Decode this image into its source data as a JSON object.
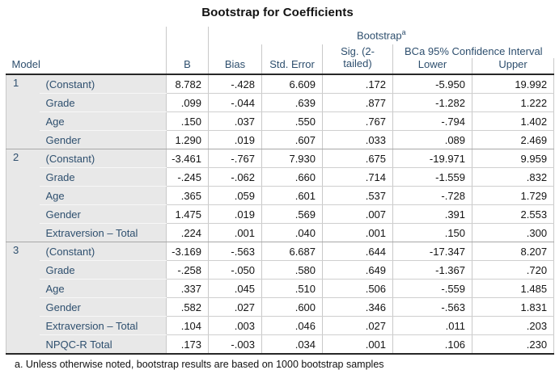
{
  "title": "Bootstrap for Coefficients",
  "header": {
    "model": "Model",
    "b": "B",
    "bootstrap": "Bootstrap",
    "bootstrap_footnote_marker": "a",
    "bias": "Bias",
    "std_error": "Std. Error",
    "sig_line1": "Sig. (2-",
    "sig_line2": "tailed)",
    "bca": "BCa 95% Confidence Interval",
    "lower": "Lower",
    "upper": "Upper"
  },
  "models": [
    {
      "number": "1",
      "rows": [
        {
          "label": "(Constant)",
          "b": "8.782",
          "bias": "-.428",
          "std_error": "6.609",
          "sig": ".172",
          "lower": "-5.950",
          "upper": "19.992"
        },
        {
          "label": "Grade",
          "b": ".099",
          "bias": "-.044",
          "std_error": ".639",
          "sig": ".877",
          "lower": "-1.282",
          "upper": "1.222"
        },
        {
          "label": "Age",
          "b": ".150",
          "bias": ".037",
          "std_error": ".550",
          "sig": ".767",
          "lower": "-.794",
          "upper": "1.402"
        },
        {
          "label": "Gender",
          "b": "1.290",
          "bias": ".019",
          "std_error": ".607",
          "sig": ".033",
          "lower": ".089",
          "upper": "2.469"
        }
      ]
    },
    {
      "number": "2",
      "rows": [
        {
          "label": "(Constant)",
          "b": "-3.461",
          "bias": "-.767",
          "std_error": "7.930",
          "sig": ".675",
          "lower": "-19.971",
          "upper": "9.959"
        },
        {
          "label": "Grade",
          "b": "-.245",
          "bias": "-.062",
          "std_error": ".660",
          "sig": ".714",
          "lower": "-1.559",
          "upper": ".832"
        },
        {
          "label": "Age",
          "b": ".365",
          "bias": ".059",
          "std_error": ".601",
          "sig": ".537",
          "lower": "-.728",
          "upper": "1.729"
        },
        {
          "label": "Gender",
          "b": "1.475",
          "bias": ".019",
          "std_error": ".569",
          "sig": ".007",
          "lower": ".391",
          "upper": "2.553"
        },
        {
          "label": "Extraversion – Total",
          "b": ".224",
          "bias": ".001",
          "std_error": ".040",
          "sig": ".001",
          "lower": ".150",
          "upper": ".300"
        }
      ]
    },
    {
      "number": "3",
      "rows": [
        {
          "label": "(Constant)",
          "b": "-3.169",
          "bias": "-.563",
          "std_error": "6.687",
          "sig": ".644",
          "lower": "-17.347",
          "upper": "8.207"
        },
        {
          "label": "Grade",
          "b": "-.258",
          "bias": "-.050",
          "std_error": ".580",
          "sig": ".649",
          "lower": "-1.367",
          "upper": ".720"
        },
        {
          "label": "Age",
          "b": ".337",
          "bias": ".045",
          "std_error": ".510",
          "sig": ".506",
          "lower": "-.559",
          "upper": "1.485"
        },
        {
          "label": "Gender",
          "b": ".582",
          "bias": ".027",
          "std_error": ".600",
          "sig": ".346",
          "lower": "-.563",
          "upper": "1.831"
        },
        {
          "label": "Extraversion – Total",
          "b": ".104",
          "bias": ".003",
          "std_error": ".046",
          "sig": ".027",
          "lower": ".011",
          "upper": ".203"
        },
        {
          "label": "NPQC-R Total",
          "b": ".173",
          "bias": "-.003",
          "std_error": ".034",
          "sig": ".001",
          "lower": ".106",
          "upper": ".230"
        }
      ]
    }
  ],
  "footnote": "a. Unless otherwise noted, bootstrap results are based on 1000 bootstrap samples",
  "colors": {
    "header_text": "#2e4f6e",
    "number_text": "#141414",
    "stub_background": "#e8e8e8",
    "grid_line": "#c9c9c9",
    "model_divider": "#a8a8a8",
    "heavy_rule": "#272727"
  }
}
